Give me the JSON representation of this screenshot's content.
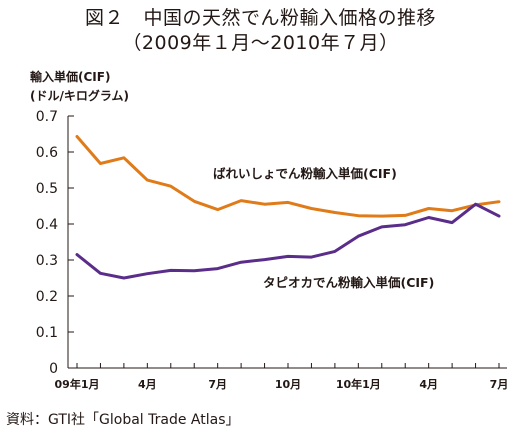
{
  "title": {
    "line1": "図２　中国の天然でん粉輸入価格の推移",
    "line2": "（2009年１月〜2010年７月）"
  },
  "y_axis_label": {
    "line1": "輸入単価(CIF)",
    "line2": "(ドル/キログラム)"
  },
  "source": "資料：GTI社「Global Trade Atlas」",
  "colors": {
    "potato": "#E07B1A",
    "tapioca": "#5B2D8A",
    "axis": "#231815"
  },
  "chart_data": {
    "type": "line",
    "ylabel": "輸入単価(CIF)(ドル/キログラム)",
    "ylim": [
      0,
      0.7
    ],
    "yticks": [
      "0",
      "0.1",
      "0.2",
      "0.3",
      "0.4",
      "0.5",
      "0.6",
      "0.7"
    ],
    "x_tick_labels": [
      {
        "index": 0,
        "label": "09年1月"
      },
      {
        "index": 3,
        "label": "4月"
      },
      {
        "index": 6,
        "label": "7月"
      },
      {
        "index": 9,
        "label": "10月"
      },
      {
        "index": 12,
        "label": "10年1月"
      },
      {
        "index": 15,
        "label": "4月"
      },
      {
        "index": 18,
        "label": "7月"
      }
    ],
    "categories": [
      "2009-01",
      "2009-02",
      "2009-03",
      "2009-04",
      "2009-05",
      "2009-06",
      "2009-07",
      "2009-08",
      "2009-09",
      "2009-10",
      "2009-11",
      "2009-12",
      "2010-01",
      "2010-02",
      "2010-03",
      "2010-04",
      "2010-05",
      "2010-06",
      "2010-07"
    ],
    "series": [
      {
        "name": "ばれいしょでん粉輸入単価(CIF)",
        "color": "#E07B1A",
        "values": [
          0.643,
          0.568,
          0.584,
          0.522,
          0.505,
          0.463,
          0.44,
          0.465,
          0.455,
          0.46,
          0.443,
          0.432,
          0.423,
          0.422,
          0.424,
          0.443,
          0.437,
          0.453,
          0.462
        ]
      },
      {
        "name": "タピオカでん粉輸入単価(CIF)",
        "color": "#5B2D8A",
        "values": [
          0.315,
          0.263,
          0.25,
          0.262,
          0.271,
          0.27,
          0.276,
          0.294,
          0.301,
          0.31,
          0.308,
          0.324,
          0.366,
          0.392,
          0.398,
          0.418,
          0.404,
          0.455,
          0.422
        ]
      }
    ]
  }
}
